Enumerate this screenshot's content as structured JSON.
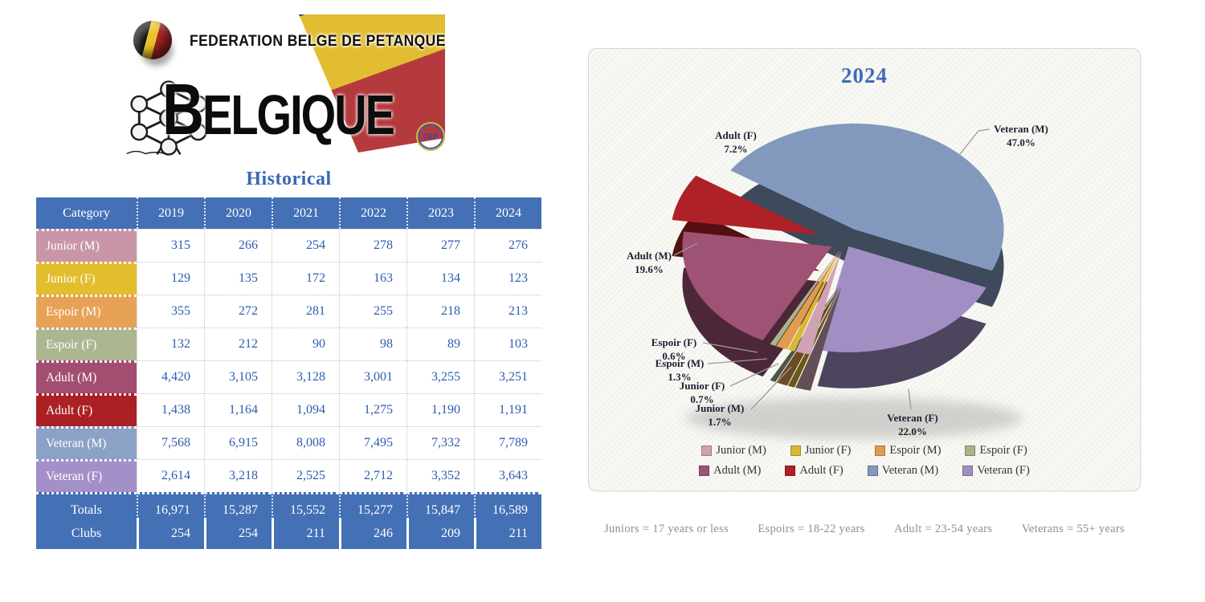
{
  "logo": {
    "federation_line": "FEDERATION BELGE DE PETANQUE",
    "country": "BELGIQUE",
    "emblem": "CEP"
  },
  "historical": {
    "title": "Historical",
    "columns": [
      "Category",
      "2019",
      "2020",
      "2021",
      "2022",
      "2023",
      "2024"
    ],
    "rows": [
      {
        "label": "Junior (M)",
        "color": "#c995a9",
        "values": [
          "315",
          "266",
          "254",
          "278",
          "277",
          "276"
        ]
      },
      {
        "label": "Junior (F)",
        "color": "#e2bd2e",
        "values": [
          "129",
          "135",
          "172",
          "163",
          "134",
          "123"
        ]
      },
      {
        "label": "Espoir (M)",
        "color": "#e8a256",
        "values": [
          "355",
          "272",
          "281",
          "255",
          "218",
          "213"
        ]
      },
      {
        "label": "Espoir (F)",
        "color": "#acb690",
        "values": [
          "132",
          "212",
          "90",
          "98",
          "89",
          "103"
        ]
      },
      {
        "label": "Adult (M)",
        "color": "#a34d71",
        "values": [
          "4,420",
          "3,105",
          "3,128",
          "3,001",
          "3,255",
          "3,251"
        ]
      },
      {
        "label": "Adult (F)",
        "color": "#ab2025",
        "values": [
          "1,438",
          "1,164",
          "1,094",
          "1,275",
          "1,190",
          "1,191"
        ]
      },
      {
        "label": "Veteran (M)",
        "color": "#8ba1c6",
        "values": [
          "7,568",
          "6,915",
          "8,008",
          "7,495",
          "7,332",
          "7,789"
        ]
      },
      {
        "label": "Veteran (F)",
        "color": "#a490c8",
        "values": [
          "2,614",
          "3,218",
          "2,525",
          "2,712",
          "3,352",
          "3,643"
        ]
      }
    ],
    "totals": {
      "label": "Totals",
      "values": [
        "16,971",
        "15,287",
        "15,552",
        "15,277",
        "15,847",
        "16,589"
      ]
    },
    "clubs": {
      "label": "Clubs",
      "values": [
        "254",
        "254",
        "211",
        "246",
        "209",
        "211"
      ]
    }
  },
  "chart_data": {
    "type": "pie",
    "title": "2024",
    "labels": [
      "Junior (M)",
      "Junior (F)",
      "Espoir (M)",
      "Espoir (F)",
      "Adult (M)",
      "Adult (F)",
      "Veteran (M)",
      "Veteran (F)"
    ],
    "values_count": [
      276,
      123,
      213,
      103,
      3251,
      1191,
      7789,
      3643
    ],
    "values_pct": [
      1.7,
      0.7,
      1.3,
      0.6,
      19.6,
      7.2,
      47.0,
      22.0
    ],
    "pct_labels": [
      "1.7%",
      "0.7%",
      "1.3%",
      "0.6%",
      "19.6%",
      "7.2%",
      "47.0%",
      "22.0%"
    ],
    "colors": [
      "#d0a2b5",
      "#d8b931",
      "#df9c50",
      "#a9b48d",
      "#9e5274",
      "#ae2126",
      "#8299bd",
      "#a18fc4"
    ],
    "style": "3d-exploded",
    "legend_position": "bottom",
    "legend_rows": [
      [
        "Junior (M)",
        "Junior (F)",
        "Espoir (M)",
        "Espoir (F)"
      ],
      [
        "Adult (M)",
        "Adult (F)",
        "Veteran (M)",
        "Veteran (F)"
      ]
    ]
  },
  "footnotes": [
    "Juniors = 17 years or less",
    "Espoirs = 18-22 years",
    "Adult = 23-54 years",
    "Veterans = 55+ years"
  ],
  "colors": {
    "accent_blue": "#4470b5",
    "value_text": "#2e5cae"
  }
}
